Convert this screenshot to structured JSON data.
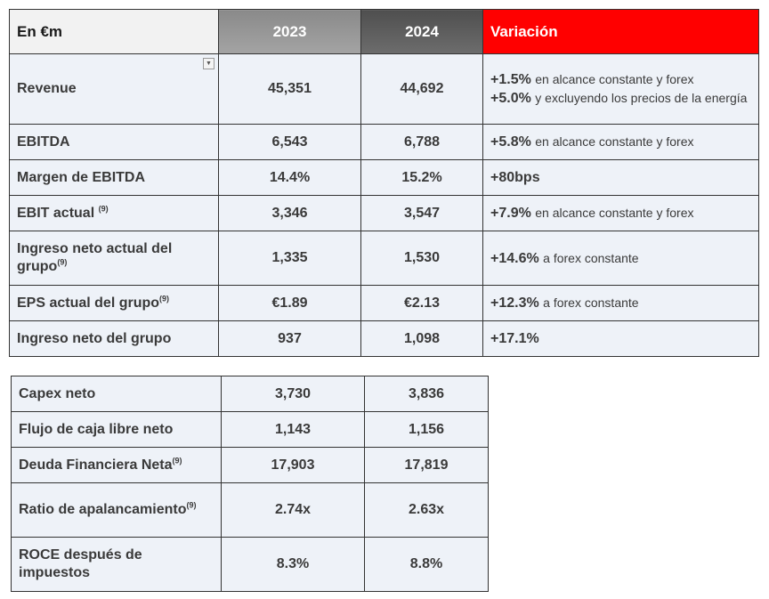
{
  "table1": {
    "headers": {
      "label": "En €m",
      "y2023": "2023",
      "y2024": "2024",
      "variation": "Variación"
    },
    "rows": [
      {
        "label": "Revenue",
        "v2023": "45,351",
        "v2024": "44,692",
        "var1": "+1.5%",
        "note1": "en alcance constante y forex",
        "var2": "+5.0%",
        "note2": "y excluyendo los precios de la energía"
      },
      {
        "label": "EBITDA",
        "v2023": "6,543",
        "v2024": "6,788",
        "var1": "+5.8%",
        "note1": "en alcance constante y forex"
      },
      {
        "label": "Margen de EBITDA",
        "v2023": "14.4%",
        "v2024": "15.2%",
        "var1": "+80bps"
      },
      {
        "label": "EBIT actual",
        "sup": "(9)",
        "v2023": "3,346",
        "v2024": "3,547",
        "var1": "+7.9%",
        "note1": "en alcance constante y forex"
      },
      {
        "label": "Ingreso neto actual del grupo",
        "sup": "(9)",
        "v2023": "1,335",
        "v2024": "1,530",
        "var1": "+14.6%",
        "note1": "a forex constante"
      },
      {
        "label": "EPS actual del grupo",
        "sup": "(9)",
        "v2023": "€1.89",
        "v2024": "€2.13",
        "var1": "+12.3%",
        "note1": "a forex constante"
      },
      {
        "label": "Ingreso neto del grupo",
        "v2023": "937",
        "v2024": "1,098",
        "var1": "+17.1%"
      }
    ]
  },
  "table2": {
    "rows": [
      {
        "label": "Capex neto",
        "v2023": "3,730",
        "v2024": "3,836"
      },
      {
        "label": "Flujo de caja libre neto",
        "v2023": "1,143",
        "v2024": "1,156"
      },
      {
        "label": "Deuda Financiera Neta",
        "sup": "(9)",
        "v2023": "17,903",
        "v2024": "17,819"
      },
      {
        "label": "Ratio de apalancamiento",
        "sup": "(9)",
        "v2023": "2.74x",
        "v2024": "2.63x"
      },
      {
        "label": "ROCE después de impuestos",
        "v2023": "8.3%",
        "v2024": "8.8%"
      }
    ]
  }
}
